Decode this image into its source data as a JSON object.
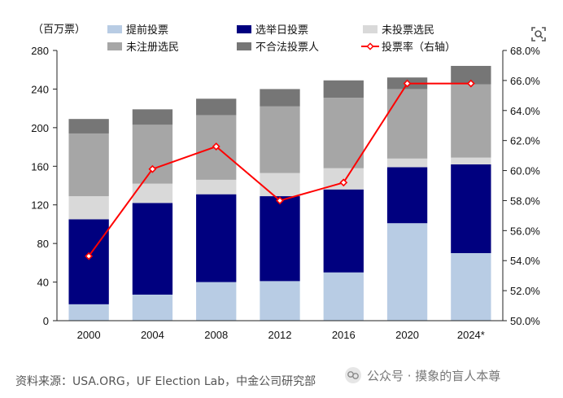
{
  "chart_data": {
    "type": "bar",
    "stacked": true,
    "categories": [
      "2000",
      "2004",
      "2008",
      "2012",
      "2016",
      "2020",
      "2024*"
    ],
    "left_axis": {
      "unit_label": "（百万票）",
      "ylim": [
        0,
        280
      ],
      "ticks": [
        "0",
        "40",
        "80",
        "120",
        "160",
        "200",
        "240",
        "280"
      ]
    },
    "right_axis": {
      "ylim": [
        50,
        68
      ],
      "ticks": [
        "50.0%",
        "52.0%",
        "54.0%",
        "56.0%",
        "58.0%",
        "60.0%",
        "62.0%",
        "64.0%",
        "66.0%",
        "68.0%"
      ]
    },
    "series": [
      {
        "name": "提前投票",
        "color": "#b8cce4",
        "values": [
          17,
          27,
          40,
          41,
          50,
          101,
          70
        ]
      },
      {
        "name": "选举日投票",
        "color": "#00007f",
        "values": [
          88,
          95,
          91,
          88,
          86,
          58,
          92
        ]
      },
      {
        "name": "未投票选民",
        "color": "#d9d9d9",
        "values": [
          24,
          20,
          15,
          24,
          22,
          9,
          7
        ]
      },
      {
        "name": "未注册选民",
        "color": "#a6a6a6",
        "values": [
          65,
          61,
          67,
          69,
          73,
          72,
          76
        ]
      },
      {
        "name": "不合法投票人",
        "color": "#767676",
        "values": [
          15,
          16,
          17,
          18,
          18,
          12,
          19
        ]
      }
    ],
    "line": {
      "name": "投票率（右轴）",
      "color": "#ff0000",
      "axis": "right",
      "values": [
        54.3,
        60.1,
        61.6,
        58.0,
        59.2,
        65.8,
        65.8
      ]
    },
    "legend_position": "top",
    "grid": false
  },
  "footer": {
    "source": "资料来源：USA.ORG，UF Election Lab，中金公司研究部",
    "watermark": "公众号 · 摸象的盲人本尊"
  }
}
